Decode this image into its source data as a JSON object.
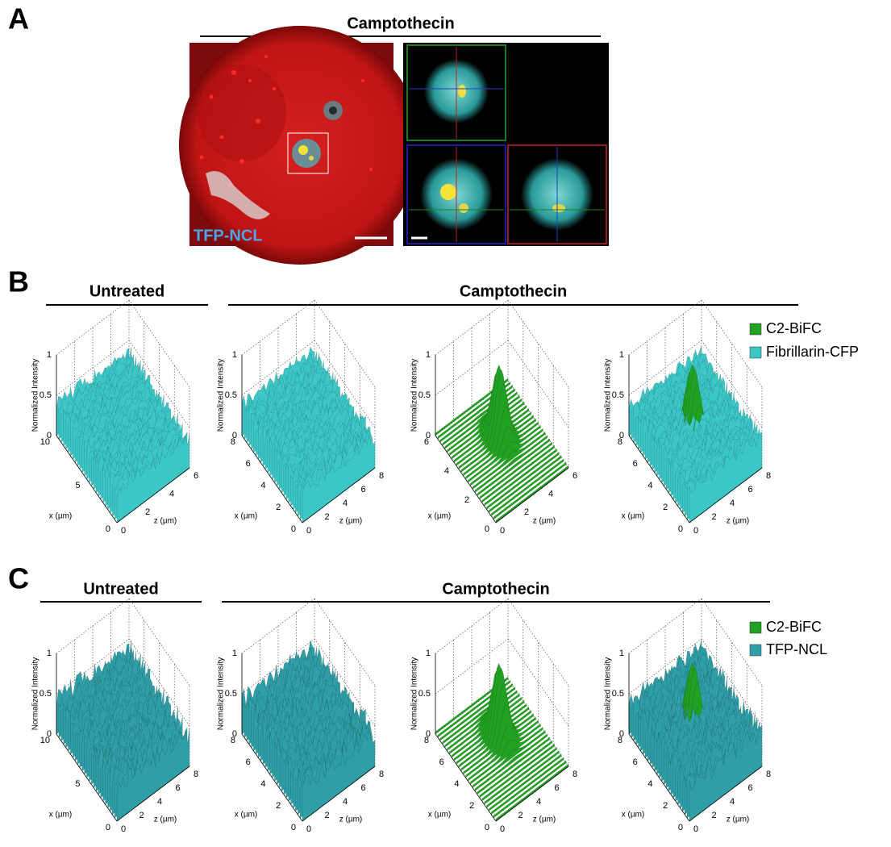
{
  "panel_a": {
    "letter": "A",
    "title": "Camptothecin",
    "image_label": "TFP-NCL"
  },
  "panel_b": {
    "letter": "B",
    "group_titles": [
      "Untreated",
      "Camptothecin"
    ],
    "legend": [
      {
        "name": "C2-BiFC",
        "color": "#22a022"
      },
      {
        "name": "Fibrillarin-CFP",
        "color": "#3cc6c6"
      }
    ],
    "plots": [
      {
        "z_axis": "Normalized Intensity",
        "z_ticks": [
          "0",
          "0.5",
          "1"
        ],
        "x_axis": "x (µm)",
        "x_ticks": [
          "0",
          "5",
          "10"
        ],
        "y_axis": "z (µm)",
        "y_ticks": [
          "0",
          "2",
          "4",
          "6"
        ],
        "surface_colors": [
          "#3cc6c6"
        ]
      },
      {
        "z_axis": "Normalized Intensity",
        "z_ticks": [
          "0",
          "0.5",
          "1"
        ],
        "x_axis": "x (µm)",
        "x_ticks": [
          "0",
          "2",
          "4",
          "6",
          "8"
        ],
        "y_axis": "z (µm)",
        "y_ticks": [
          "0",
          "2",
          "4",
          "6",
          "8"
        ],
        "surface_colors": [
          "#3cc6c6"
        ]
      },
      {
        "z_axis": "Normalized Intensity",
        "z_ticks": [
          "0",
          "0.5",
          "1"
        ],
        "x_axis": "x (µm)",
        "x_ticks": [
          "0",
          "2",
          "4",
          "6"
        ],
        "y_axis": "z (µm)",
        "y_ticks": [
          "0",
          "2",
          "4",
          "6"
        ],
        "surface_colors": [
          "#22a022"
        ]
      },
      {
        "z_axis": "Normalized Intensity",
        "z_ticks": [
          "0",
          "0.5",
          "1"
        ],
        "x_axis": "x (µm)",
        "x_ticks": [
          "0",
          "2",
          "4",
          "6",
          "8"
        ],
        "y_axis": "z (µm)",
        "y_ticks": [
          "0",
          "2",
          "4",
          "6",
          "8"
        ],
        "surface_colors": [
          "#22a022",
          "#3cc6c6"
        ]
      }
    ]
  },
  "panel_c": {
    "letter": "C",
    "group_titles": [
      "Untreated",
      "Camptothecin"
    ],
    "legend": [
      {
        "name": "C2-BiFC",
        "color": "#22a022"
      },
      {
        "name": "TFP-NCL",
        "color": "#2f9ea6"
      }
    ],
    "plots": [
      {
        "z_axis": "Normalized Intensity",
        "z_ticks": [
          "0",
          "0.5",
          "1"
        ],
        "x_axis": "x (µm)",
        "x_ticks": [
          "0",
          "5",
          "10"
        ],
        "y_axis": "z (µm)",
        "y_ticks": [
          "0",
          "2",
          "4",
          "6",
          "8"
        ],
        "surface_colors": [
          "#2f9ea6"
        ]
      },
      {
        "z_axis": "Normalized Intensity",
        "z_ticks": [
          "0",
          "0.5",
          "1"
        ],
        "x_axis": "x (µm)",
        "x_ticks": [
          "0",
          "2",
          "4",
          "6",
          "8"
        ],
        "y_axis": "z (µm)",
        "y_ticks": [
          "0",
          "2",
          "4",
          "6",
          "8"
        ],
        "surface_colors": [
          "#2f9ea6"
        ]
      },
      {
        "z_axis": "Normalized Intensity",
        "z_ticks": [
          "0",
          "0.5",
          "1"
        ],
        "x_axis": "x (µm)",
        "x_ticks": [
          "0",
          "2",
          "4",
          "6",
          "8"
        ],
        "y_axis": "z (µm)",
        "y_ticks": [
          "0",
          "2",
          "4",
          "6",
          "8"
        ],
        "surface_colors": [
          "#22a022"
        ]
      },
      {
        "z_axis": "Normalized Intensity",
        "z_ticks": [
          "0",
          "0.5",
          "1"
        ],
        "x_axis": "x (µm)",
        "x_ticks": [
          "0",
          "2",
          "4",
          "6",
          "8"
        ],
        "y_axis": "z (µm)",
        "y_ticks": [
          "0",
          "2",
          "4",
          "6",
          "8"
        ],
        "surface_colors": [
          "#22a022",
          "#2f9ea6"
        ]
      }
    ]
  }
}
